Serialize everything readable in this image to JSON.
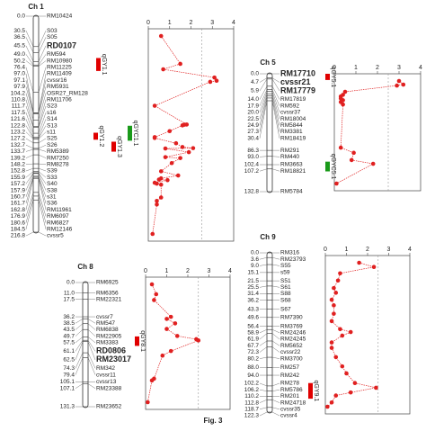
{
  "figure_caption": "Fig. 3",
  "panels": [
    {
      "title": "Ch 1",
      "xlim": [
        0,
        4
      ],
      "xticks": [
        0,
        1,
        2,
        3,
        4
      ],
      "threshold": 2.5,
      "curve_color": "#e02020",
      "markers": [
        {
          "pos": {
            "value": 0,
            "label": "0.0"
          },
          "name": "RM10424"
        },
        {
          "pos": 30.5,
          "name": "S03"
        },
        {
          "pos": 36.5,
          "name": "S05"
        },
        {
          "pos": 45.5,
          "name": "RD0107",
          "color": "#e00000"
        },
        {
          "pos": {
            "value": 49,
            "label": "49.0"
          },
          "name": "RM594"
        },
        {
          "pos": 50.2,
          "name": "RM10980"
        },
        {
          "pos": 76.4,
          "name": "RM11225"
        },
        {
          "pos": {
            "value": 97,
            "label": "97.0"
          },
          "name": "RM11409"
        },
        {
          "pos": 97.1,
          "name": "cvssr16"
        },
        {
          "pos": 97.9,
          "name": "RM5931"
        },
        {
          "pos": 104.2,
          "name": "OSR27_RM128"
        },
        {
          "pos": 110.8,
          "name": "RM11706"
        },
        {
          "pos": 111.7,
          "name": "S23"
        },
        {
          "pos": 117.5,
          "name": "s16"
        },
        {
          "pos": 121.6,
          "name": "S14"
        },
        {
          "pos": 122.8,
          "name": "S13"
        },
        {
          "pos": 123.2,
          "name": "s11"
        },
        {
          "pos": 127.2,
          "name": "S25"
        },
        {
          "pos": 132.7,
          "name": "S26"
        },
        {
          "pos": 133.7,
          "name": "RM5389"
        },
        {
          "pos": 139.2,
          "name": "RM7250"
        },
        {
          "pos": 148.2,
          "name": "RM8278"
        },
        {
          "pos": 152.8,
          "name": "S39"
        },
        {
          "pos": 155.9,
          "name": "S33"
        },
        {
          "pos": 157.2,
          "name": "S40"
        },
        {
          "pos": 157.9,
          "name": "S38"
        },
        {
          "pos": 160.7,
          "name": "s31"
        },
        {
          "pos": 161.7,
          "name": "S36"
        },
        {
          "pos": 162.8,
          "name": "RM11961"
        },
        {
          "pos": 176.9,
          "name": "RM6097"
        },
        {
          "pos": 180.6,
          "name": "RM6827"
        },
        {
          "pos": 184.5,
          "name": "RM12146"
        },
        {
          "pos": 216.8,
          "name": "cvssr5"
        }
      ],
      "lod": [
        0.6,
        1.5,
        0.7,
        3.1,
        3.2,
        2.9,
        0.3,
        1.8,
        1.7,
        1.6,
        1.0,
        0.3,
        0.3,
        1.3,
        1.6,
        2.1,
        0.8,
        1.9,
        0.8,
        1.5,
        1.1,
        0.6,
        1.4,
        0.6,
        0.5,
        0.9,
        0.3,
        0.4,
        0.6,
        0.6,
        0.4,
        0.4,
        0.2
      ],
      "qtls": [
        {
          "name": "qGY1.1",
          "color": "#e00000",
          "start": 42,
          "end": 55
        },
        {
          "name": "qGYC1.1",
          "color": "#1a9a1a",
          "start": 110,
          "end": 125
        },
        {
          "name": "qGY1.2",
          "color": "#e00000",
          "start": 117,
          "end": 124
        },
        {
          "name": "qGY1.3",
          "color": "#e00000",
          "start": 126,
          "end": 136
        }
      ]
    },
    {
      "title": "Ch 5",
      "xlim": [
        0,
        4
      ],
      "xticks": [
        0,
        1,
        2,
        3,
        4
      ],
      "threshold": 2.5,
      "curve_color": "#e02020",
      "markers": [
        {
          "pos": {
            "value": 0,
            "label": "0.0"
          },
          "name": "RM17710",
          "color": "#e00000"
        },
        {
          "pos": 4.7,
          "name": "cvssr21",
          "color": "#e00000"
        },
        {
          "pos": 5.9,
          "name": "RM17779",
          "color": "#e00000"
        },
        {
          "pos": {
            "value": 14,
            "label": "14.0"
          },
          "name": "RM17819"
        },
        {
          "pos": 17.9,
          "name": "RM592"
        },
        {
          "pos": {
            "value": 20,
            "label": "20.0"
          },
          "name": "cvssr37"
        },
        {
          "pos": 22.5,
          "name": "RM18004"
        },
        {
          "pos": 24.9,
          "name": "RM5844"
        },
        {
          "pos": 27.3,
          "name": "RM3381"
        },
        {
          "pos": 30.4,
          "name": "RM18419"
        },
        {
          "pos": 86.3,
          "name": "RM291"
        },
        {
          "pos": {
            "value": 93,
            "label": "93.0"
          },
          "name": "RM440"
        },
        {
          "pos": 102.4,
          "name": "RM3663"
        },
        {
          "pos": 107.2,
          "name": "RM18821"
        },
        {
          "pos": 132.8,
          "name": "RM5784"
        }
      ],
      "lod": [
        3.0,
        3.2,
        2.9,
        0.5,
        0.4,
        0.3,
        0.3,
        0.4,
        0.3,
        0.4,
        0.3,
        0.9,
        0.8,
        1.8,
        0.1
      ],
      "qtls": [
        {
          "name": "qGY5.1",
          "color": "#e00000",
          "start": 0,
          "end": 7
        },
        {
          "name": "qGYC5.1",
          "color": "#1a9a1a",
          "start": 99,
          "end": 110
        }
      ]
    },
    {
      "title": "Ch 8",
      "xlim": [
        0,
        4
      ],
      "xticks": [
        0,
        1,
        2,
        3,
        4
      ],
      "threshold": 2.5,
      "curve_color": "#e02020",
      "markers": [
        {
          "pos": {
            "value": 0,
            "label": "0.0"
          },
          "name": "RM6925"
        },
        {
          "pos": {
            "value": 11,
            "label": "11.0"
          },
          "name": "RM6356"
        },
        {
          "pos": 17.5,
          "name": "RM22321"
        },
        {
          "pos": 36.2,
          "name": "cvssr7"
        },
        {
          "pos": 38.5,
          "name": "RM547"
        },
        {
          "pos": 43.5,
          "name": "RM6838"
        },
        {
          "pos": 49.7,
          "name": "RM22905"
        },
        {
          "pos": 57.5,
          "name": "RM3383"
        },
        {
          "pos": 61.1,
          "name": "RD0806",
          "color": "#e00000"
        },
        {
          "pos": 62.5,
          "name": "RM23017",
          "color": "#e00000"
        },
        {
          "pos": 74.3,
          "name": "RM342"
        },
        {
          "pos": 79.4,
          "name": "cvssr11"
        },
        {
          "pos": 105.1,
          "name": "cvssr13"
        },
        {
          "pos": 107.1,
          "name": "RM23388"
        },
        {
          "pos": 131.3,
          "name": "RM23652"
        }
      ],
      "lod": [
        0.3,
        0.5,
        0.4,
        1.2,
        1.0,
        1.4,
        1.0,
        1.5,
        2.4,
        2.5,
        1.2,
        0.8,
        0.4,
        0.3,
        0.1
      ],
      "qtls": [
        {
          "name": "qGY8.1",
          "color": "#e00000",
          "start": 57,
          "end": 67
        }
      ]
    },
    {
      "title": "Ch 9",
      "xlim": [
        0,
        4
      ],
      "xticks": [
        0,
        1,
        2,
        3,
        4
      ],
      "threshold": 2.5,
      "curve_color": "#e02020",
      "markers": [
        {
          "pos": {
            "value": 0,
            "label": "0.0"
          },
          "name": "RM316"
        },
        {
          "pos": 3.6,
          "name": "RM23793"
        },
        {
          "pos": {
            "value": 9,
            "label": "9.0"
          },
          "name": "S55"
        },
        {
          "pos": 15.1,
          "name": "s59"
        },
        {
          "pos": 21.5,
          "name": "S51"
        },
        {
          "pos": 25.5,
          "name": "S61"
        },
        {
          "pos": 31.4,
          "name": "S88"
        },
        {
          "pos": 36.2,
          "name": "S68"
        },
        {
          "pos": 43.3,
          "name": "S67"
        },
        {
          "pos": 49.6,
          "name": "RM7390"
        },
        {
          "pos": 56.4,
          "name": "RM3769"
        },
        {
          "pos": 58.9,
          "name": "RM24246"
        },
        {
          "pos": 61.9,
          "name": "RM24245"
        },
        {
          "pos": 67.7,
          "name": "RM5652"
        },
        {
          "pos": 72.3,
          "name": "cvssr22"
        },
        {
          "pos": 80.2,
          "name": "RM3700"
        },
        {
          "pos": {
            "value": 88,
            "label": "88.0"
          },
          "name": "RM257"
        },
        {
          "pos": {
            "value": 94,
            "label": "94.0"
          },
          "name": "RM242"
        },
        {
          "pos": 102.2,
          "name": "RM278"
        },
        {
          "pos": 106.2,
          "name": "RM5786"
        },
        {
          "pos": 110.2,
          "name": "RM201"
        },
        {
          "pos": 112.8,
          "name": "RM24718"
        },
        {
          "pos": 118.7,
          "name": "cvssr35"
        },
        {
          "pos": 122.3,
          "name": "cvssr4"
        }
      ],
      "lod": [
        1.6,
        2.3,
        0.7,
        0.6,
        0.4,
        0.5,
        0.3,
        0.4,
        0.4,
        0.3,
        0.7,
        1.2,
        0.8,
        0.3,
        0.3,
        0.5,
        0.8,
        1.0,
        1.4,
        2.4,
        1.2,
        0.5,
        0.3,
        0.1
      ],
      "qtls": [
        {
          "name": "qGY9.1",
          "color": "#e00000",
          "start": 100,
          "end": 112
        }
      ]
    }
  ]
}
